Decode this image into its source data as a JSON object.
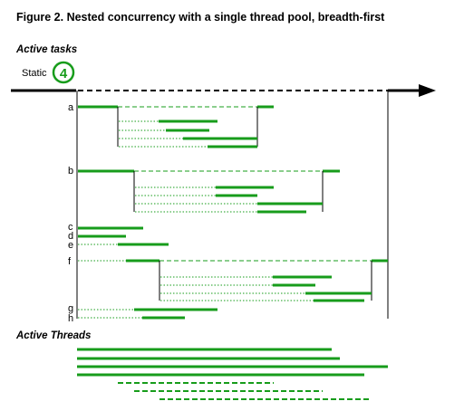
{
  "figure": {
    "title": "Figure 2.  Nested concurrency with a single thread pool, breadth-first"
  },
  "sections": {
    "active_tasks": "Active tasks",
    "active_threads": "Active Threads"
  },
  "static": {
    "label": "Static",
    "count": "4",
    "color": "#179c1b"
  },
  "task_labels": [
    "a",
    "b",
    "c",
    "d",
    "e",
    "f",
    "g",
    "h"
  ],
  "colors": {
    "green": "#179c1b",
    "black": "#000000"
  }
}
